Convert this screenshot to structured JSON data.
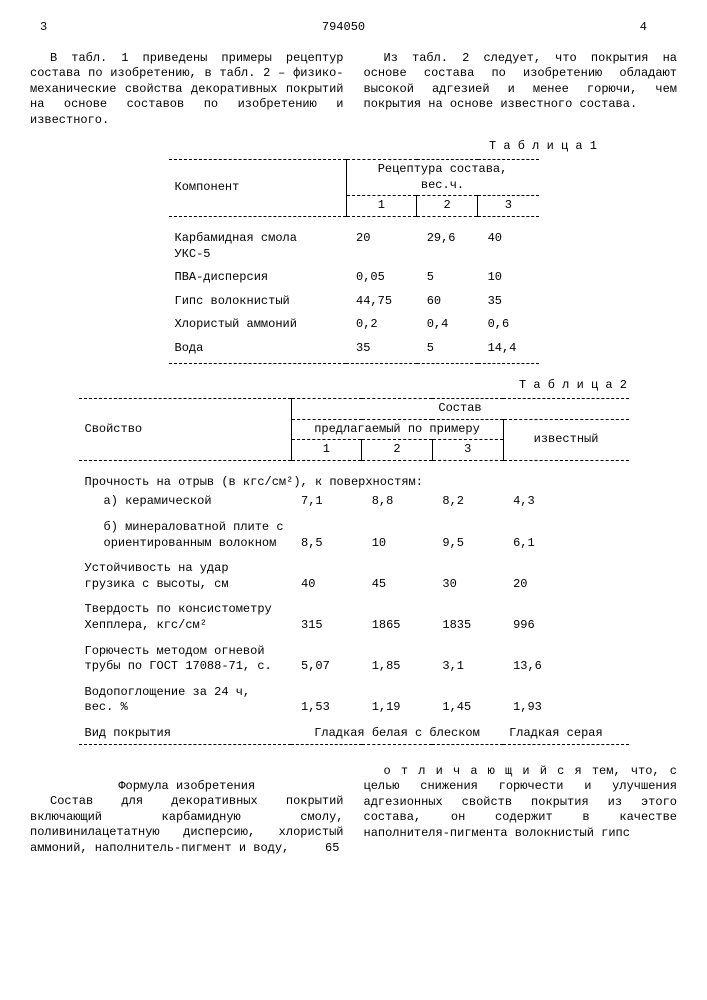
{
  "header": {
    "page_left": "3",
    "doc_number": "794050",
    "page_right": "4"
  },
  "intro_left": "В табл. 1 приведены примеры рецептур состава по изобретению, в табл. 2 – физико-механические свойства декоративных покрытий на основе составов по изобретению и известного.",
  "intro_right": "Из табл. 2 следует, что покрытия на основе состава по изобретению обладают высокой адгезией и менее горючи, чем покрытия на основе известного состава.",
  "table1_label": "Т а б л и ц а  1",
  "table1": {
    "h_component": "Компонент",
    "h_recipe": "Рецептура состава, вес.ч.",
    "cols": [
      "1",
      "2",
      "3"
    ],
    "rows": [
      {
        "name": "Карбамидная смола УКС-5",
        "v": [
          "20",
          "29,6",
          "40"
        ]
      },
      {
        "name": "ПВА-дисперсия",
        "v": [
          "0,05",
          "5",
          "10"
        ]
      },
      {
        "name": "Гипс волокнистый",
        "v": [
          "44,75",
          "60",
          "35"
        ]
      },
      {
        "name": "Хлористый аммоний",
        "v": [
          "0,2",
          "0,4",
          "0,6"
        ]
      },
      {
        "name": "Вода",
        "v": [
          "35",
          "5",
          "14,4"
        ]
      }
    ]
  },
  "table2_label": "Т а б л и ц а  2",
  "table2": {
    "h_property": "Свойство",
    "h_sostav": "Состав",
    "h_proposed": "предлагаемый по примеру",
    "h_known": "известный",
    "cols": [
      "1",
      "2",
      "3"
    ],
    "peel_header": "Прочность на отрыв (в кгс/см²), к поверхностям:",
    "rows": [
      {
        "name": "а) керамической",
        "v": [
          "7,1",
          "8,8",
          "8,2",
          "4,3"
        ],
        "sub": true
      },
      {
        "name": "б) минераловатной плите с ориентированным волокном",
        "v": [
          "8,5",
          "10",
          "9,5",
          "6,1"
        ],
        "sub": true
      },
      {
        "name": "Устойчивость на удар грузика с высоты, см",
        "v": [
          "40",
          "45",
          "30",
          "20"
        ]
      },
      {
        "name": "Твердость по консистометру Хепплера, кгс/см²",
        "v": [
          "315",
          "1865",
          "1835",
          "996"
        ]
      },
      {
        "name": "Горючесть методом огневой трубы по ГОСТ 17088-71, с.",
        "v": [
          "5,07",
          "1,85",
          "3,1",
          "13,6"
        ]
      },
      {
        "name": "Водопоглощение за 24 ч, вес. %",
        "v": [
          "1,53",
          "1,19",
          "1,45",
          "1,93"
        ]
      }
    ],
    "appearance_label": "Вид покрытия",
    "appearance_proposed": "Гладкая белая с блеском",
    "appearance_known": "Гладкая серая"
  },
  "formula_title": "Формула изобретения",
  "formula_left": "Состав для декоративных покрытий включающий карбамидную смолу, поливинилацетатную дисперсию, хлористый аммоний, наполнитель-пигмент и воду,",
  "formula_right": "о т л и ч а ю щ и й с я  тем, что, с целью снижения горючести и улучшения адгезионных свойств покрытия из этого состава, он содержит в качестве наполнителя-пигмента волокнистый гипс",
  "line_marker": "65"
}
